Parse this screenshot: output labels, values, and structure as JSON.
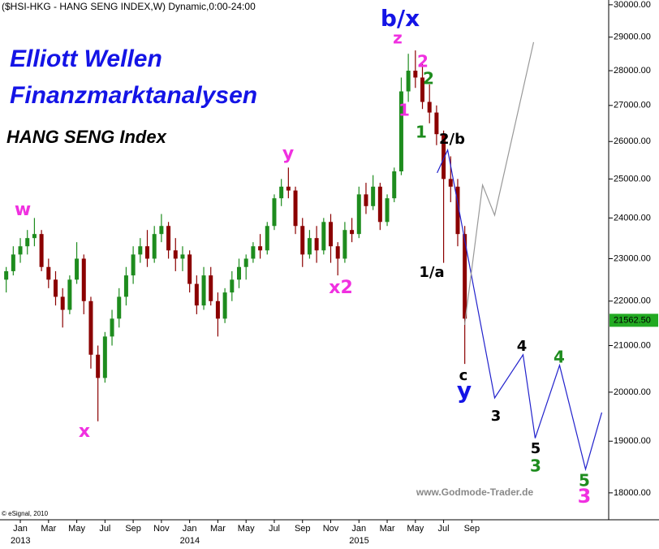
{
  "chart_data": {
    "type": "candlestick",
    "title": "($HSI-HKG - HANG SENG INDEX,W) Dynamic,0:00-24:00",
    "log_scale": true,
    "ylim": [
      17500,
      30150
    ],
    "yticks": [
      {
        "value": 18000,
        "label": "18000.00"
      },
      {
        "value": 19000,
        "label": "19000.00"
      },
      {
        "value": 20000,
        "label": "20000.00"
      },
      {
        "value": 21000,
        "label": "21000.00"
      },
      {
        "value": 22000,
        "label": "22000.00"
      },
      {
        "value": 23000,
        "label": "23000.00"
      },
      {
        "value": 24000,
        "label": "24000.00"
      },
      {
        "value": 25000,
        "label": "25000.00"
      },
      {
        "value": 26000,
        "label": "26000.00"
      },
      {
        "value": 27000,
        "label": "27000.00"
      },
      {
        "value": 28000,
        "label": "28000.00"
      },
      {
        "value": 29000,
        "label": "29000.00"
      },
      {
        "value": 30000,
        "label": "30000.00"
      }
    ],
    "xlim": [
      -1.44,
      41.7
    ],
    "xticks": [
      {
        "value": 0,
        "label": "Jan"
      },
      {
        "value": 2,
        "label": "Mar"
      },
      {
        "value": 4,
        "label": "May"
      },
      {
        "value": 6,
        "label": "Jul"
      },
      {
        "value": 8,
        "label": "Sep"
      },
      {
        "value": 10,
        "label": "Nov"
      },
      {
        "value": 12,
        "label": "Jan"
      },
      {
        "value": 14,
        "label": "Mar"
      },
      {
        "value": 16,
        "label": "May"
      },
      {
        "value": 18,
        "label": "Jul"
      },
      {
        "value": 20,
        "label": "Sep"
      },
      {
        "value": 22,
        "label": "Nov"
      },
      {
        "value": 24,
        "label": "Jan"
      },
      {
        "value": 26,
        "label": "Mar"
      },
      {
        "value": 28,
        "label": "May"
      },
      {
        "value": 30,
        "label": "Jul"
      },
      {
        "value": 32,
        "label": "Sep"
      }
    ],
    "year_ticks": [
      {
        "value": 0,
        "label": "2013"
      },
      {
        "value": 12,
        "label": "2014"
      },
      {
        "value": 24,
        "label": "2015"
      }
    ],
    "up_color": "#1e8c1e",
    "down_color": "#8b0000",
    "x": [
      -1,
      -0.5,
      0,
      0.5,
      1,
      1.5,
      2,
      2.5,
      3,
      3.5,
      4,
      4.5,
      5,
      5.5,
      6,
      6.5,
      7,
      7.5,
      8,
      8.5,
      9,
      9.5,
      10,
      10.5,
      11,
      11.5,
      12,
      12.5,
      13,
      13.5,
      14,
      14.5,
      15,
      15.5,
      16,
      16.5,
      17,
      17.5,
      18,
      18.5,
      19,
      19.5,
      20,
      20.5,
      21,
      21.5,
      22,
      22.5,
      23,
      23.5,
      24,
      24.5,
      25,
      25.5,
      26,
      26.5,
      27,
      27.5,
      28,
      28.5,
      29,
      29.5,
      30,
      30.5,
      31,
      31.5
    ],
    "ohlc": [
      [
        22500,
        22800,
        22200,
        22700
      ],
      [
        22700,
        23300,
        22600,
        23100
      ],
      [
        23100,
        23500,
        22900,
        23300
      ],
      [
        23300,
        23700,
        23100,
        23500
      ],
      [
        23500,
        24000,
        23300,
        23600
      ],
      [
        23600,
        23700,
        22700,
        22800
      ],
      [
        22800,
        23000,
        22300,
        22500
      ],
      [
        22500,
        22700,
        21900,
        22100
      ],
      [
        22100,
        22300,
        21400,
        21800
      ],
      [
        21800,
        22600,
        21700,
        22500
      ],
      [
        22500,
        23400,
        22400,
        23000
      ],
      [
        23000,
        23100,
        21700,
        22000
      ],
      [
        22000,
        22100,
        20500,
        20800
      ],
      [
        20800,
        21000,
        19400,
        20300
      ],
      [
        20300,
        21300,
        20200,
        21200
      ],
      [
        21200,
        21800,
        21000,
        21600
      ],
      [
        21600,
        22300,
        21400,
        22100
      ],
      [
        22100,
        22800,
        21900,
        22600
      ],
      [
        22600,
        23300,
        22400,
        23100
      ],
      [
        23100,
        23500,
        22900,
        23300
      ],
      [
        23300,
        23700,
        22800,
        23000
      ],
      [
        23000,
        23800,
        22900,
        23600
      ],
      [
        23600,
        24100,
        23400,
        23800
      ],
      [
        23800,
        23900,
        23000,
        23200
      ],
      [
        23200,
        23500,
        22700,
        23000
      ],
      [
        23000,
        23300,
        22700,
        23100
      ],
      [
        23100,
        23200,
        22200,
        22400
      ],
      [
        22400,
        22600,
        21700,
        21900
      ],
      [
        21900,
        22800,
        21800,
        22600
      ],
      [
        22600,
        22800,
        21900,
        22000
      ],
      [
        22000,
        22200,
        21200,
        21600
      ],
      [
        21600,
        22300,
        21500,
        22200
      ],
      [
        22200,
        22700,
        22000,
        22500
      ],
      [
        22500,
        23000,
        22300,
        22800
      ],
      [
        22800,
        23100,
        22500,
        23000
      ],
      [
        23000,
        23400,
        22900,
        23300
      ],
      [
        23300,
        23600,
        23000,
        23200
      ],
      [
        23200,
        23900,
        23100,
        23800
      ],
      [
        23800,
        24600,
        23700,
        24500
      ],
      [
        24500,
        25000,
        24300,
        24800
      ],
      [
        24800,
        25300,
        24500,
        24700
      ],
      [
        24700,
        24800,
        23600,
        23800
      ],
      [
        23800,
        24000,
        22800,
        23100
      ],
      [
        23100,
        23700,
        23000,
        23500
      ],
      [
        23500,
        23800,
        22900,
        23200
      ],
      [
        23200,
        24000,
        23100,
        23900
      ],
      [
        23900,
        24100,
        22900,
        23300
      ],
      [
        23300,
        23400,
        22600,
        23000
      ],
      [
        23000,
        23900,
        22900,
        23700
      ],
      [
        23700,
        24000,
        23400,
        23600
      ],
      [
        23600,
        24800,
        23500,
        24600
      ],
      [
        24600,
        24900,
        24100,
        24300
      ],
      [
        24300,
        25100,
        24200,
        24800
      ],
      [
        24800,
        24900,
        23700,
        23900
      ],
      [
        23900,
        24600,
        23800,
        24500
      ],
      [
        24500,
        25300,
        24400,
        25200
      ],
      [
        25200,
        27800,
        25100,
        27400
      ],
      [
        27400,
        28500,
        27100,
        28000
      ],
      [
        28000,
        28600,
        27500,
        27800
      ],
      [
        27800,
        28200,
        26900,
        27100
      ],
      [
        27100,
        27600,
        26500,
        26800
      ],
      [
        26800,
        27000,
        25900,
        26200
      ],
      [
        26200,
        26300,
        22900,
        25000
      ],
      [
        25000,
        25600,
        24400,
        24800
      ],
      [
        24800,
        25000,
        23300,
        23600
      ],
      [
        23600,
        23800,
        20600,
        21600
      ]
    ],
    "projections": [
      {
        "color": "#2222cc",
        "x": [
          29.54,
          30.29,
          33.62,
          35.63,
          36.49,
          38.22,
          40.06,
          41.21
        ],
        "values": [
          25160,
          25770,
          19880,
          20800,
          19060,
          20570,
          18450,
          19580
        ]
      },
      {
        "color": "#999999",
        "x": [
          31.49,
          32.76,
          33.62,
          36.38
        ],
        "values": [
          21460,
          24840,
          24070,
          28850
        ]
      }
    ],
    "last_price": {
      "value": 21562.5,
      "label": "21562.50",
      "color": "#22aa22"
    },
    "annotations": [
      {
        "text": "Elliott Wellen",
        "color": "#1414e6"
      },
      {
        "text": "Finanzmarktanalysen",
        "color": "#1414e6"
      },
      {
        "text": "HANG SENG Index",
        "color": "#000000"
      },
      {
        "text": "w",
        "color": "#f030e0"
      },
      {
        "text": "x",
        "color": "#f030e0"
      },
      {
        "text": "y",
        "color": "#f030e0"
      },
      {
        "text": "x2",
        "color": "#f030e0"
      },
      {
        "text": "b/x",
        "color": "#1414e6"
      },
      {
        "text": "z",
        "color": "#f030e0"
      },
      {
        "text": "2",
        "color": "#f030e0"
      },
      {
        "text": "2",
        "color": "#1e8c1e"
      },
      {
        "text": "1",
        "color": "#f030e0"
      },
      {
        "text": "1",
        "color": "#1e8c1e"
      },
      {
        "text": "2/b",
        "color": "#000000"
      },
      {
        "text": "1/a",
        "color": "#000000"
      },
      {
        "text": "c",
        "color": "#000000"
      },
      {
        "text": "y",
        "color": "#1414e6"
      },
      {
        "text": "3",
        "color": "#000000"
      },
      {
        "text": "4",
        "color": "#000000"
      },
      {
        "text": "4",
        "color": "#1e8c1e"
      },
      {
        "text": "5",
        "color": "#000000"
      },
      {
        "text": "3",
        "color": "#1e8c1e"
      },
      {
        "text": "5",
        "color": "#1e8c1e"
      },
      {
        "text": "3",
        "color": "#f030e0"
      },
      {
        "text": "www.Godmode-Trader.de",
        "color": "#888888"
      },
      {
        "text": "© eSignal, 2010",
        "color": "#000000"
      }
    ]
  }
}
